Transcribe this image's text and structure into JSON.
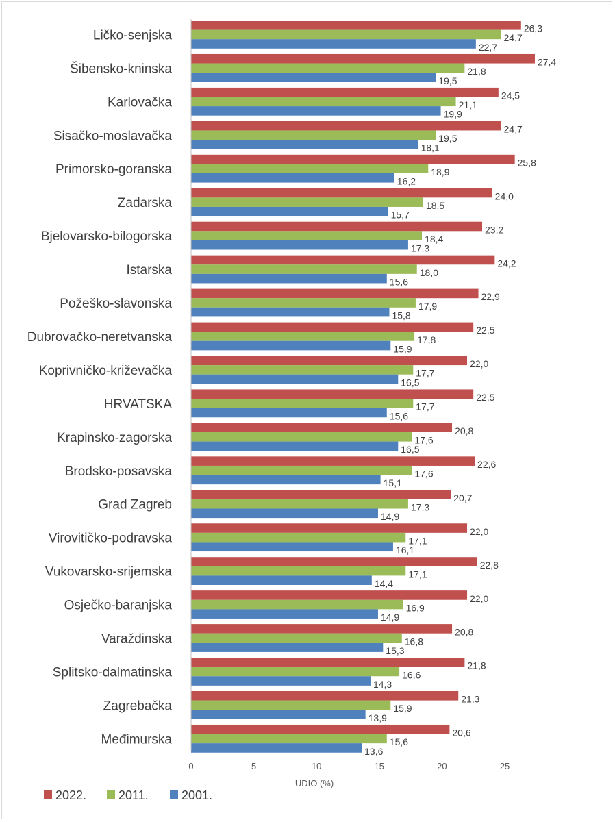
{
  "chart_data": {
    "type": "bar",
    "orientation": "horizontal",
    "xlabel": "UDIO (%)",
    "xlim": [
      0,
      27.4
    ],
    "xticks": [
      0,
      5,
      10,
      15,
      20,
      25
    ],
    "grid": false,
    "legend_position": "bottom-left",
    "categories": [
      "Ličko-senjska",
      "Šibensko-kninska",
      "Karlovačka",
      "Sisačko-moslavačka",
      "Primorsko-goranska",
      "Zadarska",
      "Bjelovarsko-bilogorska",
      "Istarska",
      "Požeško-slavonska",
      "Dubrovačko-neretvanska",
      "Koprivničko-križevačka",
      "HRVATSKA",
      "Krapinsko-zagorska",
      "Brodsko-posavska",
      "Grad Zagreb",
      "Virovitičko-podravska",
      "Vukovarsko-srijemska",
      "Osječko-baranjska",
      "Varaždinska",
      "Splitsko-dalmatinska",
      "Zagrebačka",
      "Međimurska"
    ],
    "series": [
      {
        "name": "2022.",
        "color": "#c0504d",
        "values": [
          26.3,
          27.4,
          24.5,
          24.7,
          25.8,
          24.0,
          23.2,
          24.2,
          22.9,
          22.5,
          22.0,
          22.5,
          20.8,
          22.6,
          20.7,
          22.0,
          22.8,
          22.0,
          20.8,
          21.8,
          21.3,
          20.6
        ],
        "labels": [
          "26,3",
          "27,4",
          "24,5",
          "24,7",
          "25,8",
          "24,0",
          "23,2",
          "24,2",
          "22,9",
          "22,5",
          "22,0",
          "22,5",
          "20,8",
          "22,6",
          "20,7",
          "22,0",
          "22,8",
          "22,0",
          "20,8",
          "21,8",
          "21,3",
          "20,6"
        ]
      },
      {
        "name": "2011.",
        "color": "#9bbb59",
        "values": [
          24.7,
          21.8,
          21.1,
          19.5,
          18.9,
          18.5,
          18.4,
          18.0,
          17.9,
          17.8,
          17.7,
          17.7,
          17.6,
          17.6,
          17.3,
          17.1,
          17.1,
          16.9,
          16.8,
          16.6,
          15.9,
          15.6
        ],
        "labels": [
          "24,7",
          "21,8",
          "21,1",
          "19,5",
          "18,9",
          "18,5",
          "18,4",
          "18,0",
          "17,9",
          "17,8",
          "17,7",
          "17,7",
          "17,6",
          "17,6",
          "17,3",
          "17,1",
          "17,1",
          "16,9",
          "16,8",
          "16,6",
          "15,9",
          "15,6"
        ]
      },
      {
        "name": "2001.",
        "color": "#4f81bd",
        "values": [
          22.7,
          19.5,
          19.9,
          18.1,
          16.2,
          15.7,
          17.3,
          15.6,
          15.8,
          15.9,
          16.5,
          15.6,
          16.5,
          15.1,
          14.9,
          16.1,
          14.4,
          14.9,
          15.3,
          14.3,
          13.9,
          13.6
        ],
        "labels": [
          "22,7",
          "19,5",
          "19,9",
          "18,1",
          "16,2",
          "15,7",
          "17,3",
          "15,6",
          "15,8",
          "15,9",
          "16,5",
          "15,6",
          "16,5",
          "15,1",
          "14,9",
          "16,1",
          "14,4",
          "14,9",
          "15,3",
          "14,3",
          "13,9",
          "13,6"
        ]
      }
    ]
  }
}
